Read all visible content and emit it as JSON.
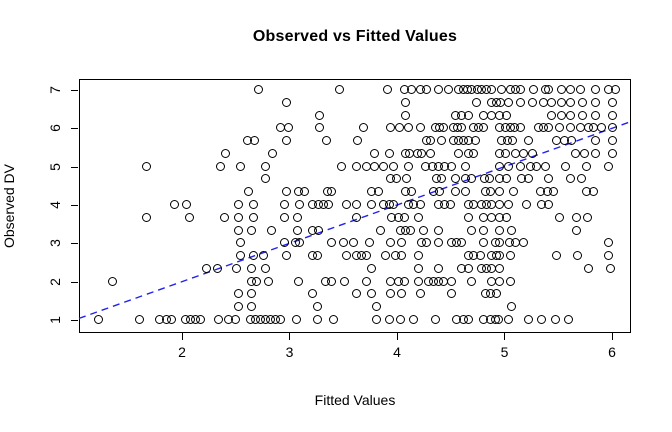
{
  "title": "Observed vs Fitted Values",
  "colors": {
    "points": "#000000",
    "identity_line": "#2222ee",
    "box": "#000000",
    "background": "#ffffff"
  },
  "chart_data": {
    "type": "scatter",
    "title": "Observed vs Fitted Values",
    "xlabel": "Fitted Values",
    "ylabel": "Observed DV",
    "x_ticks": [
      2,
      3,
      4,
      5,
      6
    ],
    "y_ticks": [
      1,
      2,
      3,
      4,
      5,
      6,
      7
    ],
    "xlim": [
      1.042,
      6.177
    ],
    "ylim": [
      0.661,
      7.287
    ],
    "grid": false,
    "legend": null,
    "marker": "open-circle",
    "identity_line": {
      "style": "dashed",
      "color": "#2222ee",
      "from": [
        1.042,
        1.042
      ],
      "to": [
        6.177,
        6.177
      ]
    },
    "rows": [
      {
        "y": 7,
        "xs": [
          2.72,
          3.47,
          3.92,
          4.07,
          4.14,
          4.22,
          4.28,
          4.39,
          4.48,
          4.58,
          4.62,
          4.66,
          4.7,
          4.75,
          4.79,
          4.84,
          4.88,
          4.98,
          5.06,
          5.11,
          5.15,
          5.27,
          5.39,
          5.41,
          5.53,
          5.62,
          5.71,
          5.85,
          5.97,
          6.04
        ]
      },
      {
        "y": 6.67,
        "xs": [
          2.98,
          4.08,
          4.74,
          4.88,
          4.93,
          4.97,
          5.04,
          5.15,
          5.26,
          5.37,
          5.44,
          5.53,
          5.62,
          5.73,
          5.85,
          6.01
        ]
      },
      {
        "y": 6.33,
        "xs": [
          3.28,
          4.08,
          4.55,
          4.6,
          4.67,
          4.81,
          4.88,
          4.96,
          5.02,
          5.44,
          5.53,
          5.62,
          5.73,
          5.85,
          6.01
        ]
      },
      {
        "y": 6,
        "xs": [
          2.92,
          2.99,
          3.28,
          3.69,
          3.94,
          4.03,
          4.11,
          4.22,
          4.36,
          4.4,
          4.44,
          4.53,
          4.57,
          4.6,
          4.72,
          4.76,
          4.81,
          4.96,
          5.01,
          5.06,
          5.1,
          5.15,
          5.32,
          5.37,
          5.41,
          5.52,
          5.62,
          5.71,
          5.79,
          5.83,
          5.91,
          6.01
        ]
      },
      {
        "y": 5.67,
        "xs": [
          2.61,
          2.68,
          2.98,
          3.35,
          3.64,
          4.28,
          4.32,
          4.42,
          4.53,
          4.58,
          4.62,
          4.67,
          4.73,
          4.98,
          5.03,
          5.08,
          5.23,
          5.49,
          5.56,
          5.63,
          5.85,
          6.01
        ]
      },
      {
        "y": 5.33,
        "xs": [
          2.41,
          2.85,
          3.79,
          3.93,
          4.08,
          4.12,
          4.19,
          4.23,
          4.32,
          4.58,
          4.67,
          4.72,
          4.96,
          5.01,
          5.11,
          5.18,
          5.26,
          5.66,
          5.75,
          5.85,
          6.01
        ]
      },
      {
        "y": 5,
        "xs": [
          1.67,
          2.36,
          2.55,
          2.78,
          3.49,
          3.63,
          3.72,
          3.79,
          3.88,
          3.97,
          4.11,
          4.27,
          4.33,
          4.39,
          4.45,
          4.51,
          4.64,
          4.96,
          5.04,
          5.15,
          5.25,
          5.3,
          5.39,
          5.57,
          5.77,
          5.97
        ]
      },
      {
        "y": 4.67,
        "xs": [
          2.78,
          3.94,
          4.0,
          4.09,
          4.37,
          4.42,
          4.55,
          4.64,
          4.7,
          4.82,
          4.86,
          4.96,
          5.02,
          5.16,
          5.23,
          5.41,
          5.62,
          5.72
        ]
      },
      {
        "y": 4.33,
        "xs": [
          2.62,
          2.98,
          3.09,
          3.14,
          3.36,
          3.39,
          3.77,
          3.83,
          4.08,
          4.14,
          4.34,
          4.4,
          4.55,
          4.64,
          4.83,
          4.87,
          4.96,
          5.09,
          5.34,
          5.4,
          5.46,
          5.77,
          5.83
        ]
      },
      {
        "y": 4,
        "xs": [
          1.93,
          2.05,
          2.53,
          2.67,
          2.96,
          3.1,
          3.22,
          3.27,
          3.32,
          3.37,
          3.53,
          3.63,
          3.77,
          3.88,
          3.93,
          3.97,
          4.11,
          4.16,
          4.22,
          4.39,
          4.45,
          4.5,
          4.67,
          4.72,
          4.79,
          4.84,
          4.88,
          4.96,
          5.04,
          5.21,
          5.35,
          5.41
        ]
      },
      {
        "y": 3.67,
        "xs": [
          1.67,
          2.07,
          2.4,
          2.53,
          2.67,
          2.96,
          3.08,
          3.63,
          3.95,
          4.02,
          4.07,
          4.2,
          4.67,
          4.81,
          4.88,
          4.96,
          5.02,
          5.52,
          5.67,
          5.78
        ]
      },
      {
        "y": 3.33,
        "xs": [
          2.53,
          2.65,
          2.84,
          3.08,
          3.22,
          3.27,
          3.85,
          4.04,
          4.08,
          4.13,
          4.25,
          4.39,
          4.7,
          4.81,
          4.96,
          5.07,
          5.67
        ]
      },
      {
        "y": 3,
        "xs": [
          2.55,
          2.96,
          3.06,
          3.1,
          3.39,
          3.51,
          3.6,
          3.75,
          3.94,
          4.05,
          4.23,
          4.28,
          4.39,
          4.51,
          4.56,
          4.6,
          4.81,
          4.92,
          4.96,
          5.05,
          5.11,
          5.18,
          5.97
        ]
      },
      {
        "y": 2.67,
        "xs": [
          2.55,
          2.67,
          2.76,
          2.98,
          3.22,
          3.26,
          3.53,
          3.63,
          3.67,
          3.72,
          3.9,
          3.99,
          4.05,
          4.2,
          4.67,
          4.72,
          4.78,
          4.88,
          4.93,
          4.96,
          5.06,
          5.49,
          5.68,
          5.97
        ]
      },
      {
        "y": 2.33,
        "xs": [
          2.23,
          2.33,
          2.51,
          2.65,
          2.78,
          3.77,
          4.2,
          4.39,
          4.6,
          4.67,
          4.79,
          4.84,
          4.88,
          4.96,
          5.79,
          5.99
        ]
      },
      {
        "y": 2,
        "xs": [
          1.36,
          2.65,
          2.7,
          2.81,
          3.09,
          3.34,
          3.39,
          3.52,
          3.72,
          3.94,
          4.02,
          4.07,
          4.2,
          4.3,
          4.34,
          4.39,
          4.44,
          4.51,
          4.7,
          4.88,
          4.96,
          5.06
        ]
      },
      {
        "y": 1.67,
        "xs": [
          2.53,
          2.65,
          3.22,
          3.63,
          3.77,
          3.94,
          4.05,
          4.22,
          4.51,
          4.83,
          4.87,
          4.93
        ]
      },
      {
        "y": 1.33,
        "xs": [
          2.53,
          2.65,
          3.26,
          3.81,
          5.07
        ]
      },
      {
        "y": 1,
        "xs": [
          1.23,
          1.61,
          1.79,
          1.86,
          1.91,
          2.04,
          2.08,
          2.13,
          2.18,
          2.34,
          2.44,
          2.5,
          2.64,
          2.69,
          2.73,
          2.78,
          2.83,
          2.87,
          2.92,
          3.07,
          3.26,
          3.41,
          3.81,
          3.93,
          4.04,
          4.16,
          4.36,
          4.56,
          4.62,
          4.67,
          4.81,
          4.87,
          4.92,
          4.95,
          5.04,
          5.23,
          5.35,
          5.48,
          5.6
        ]
      }
    ]
  }
}
